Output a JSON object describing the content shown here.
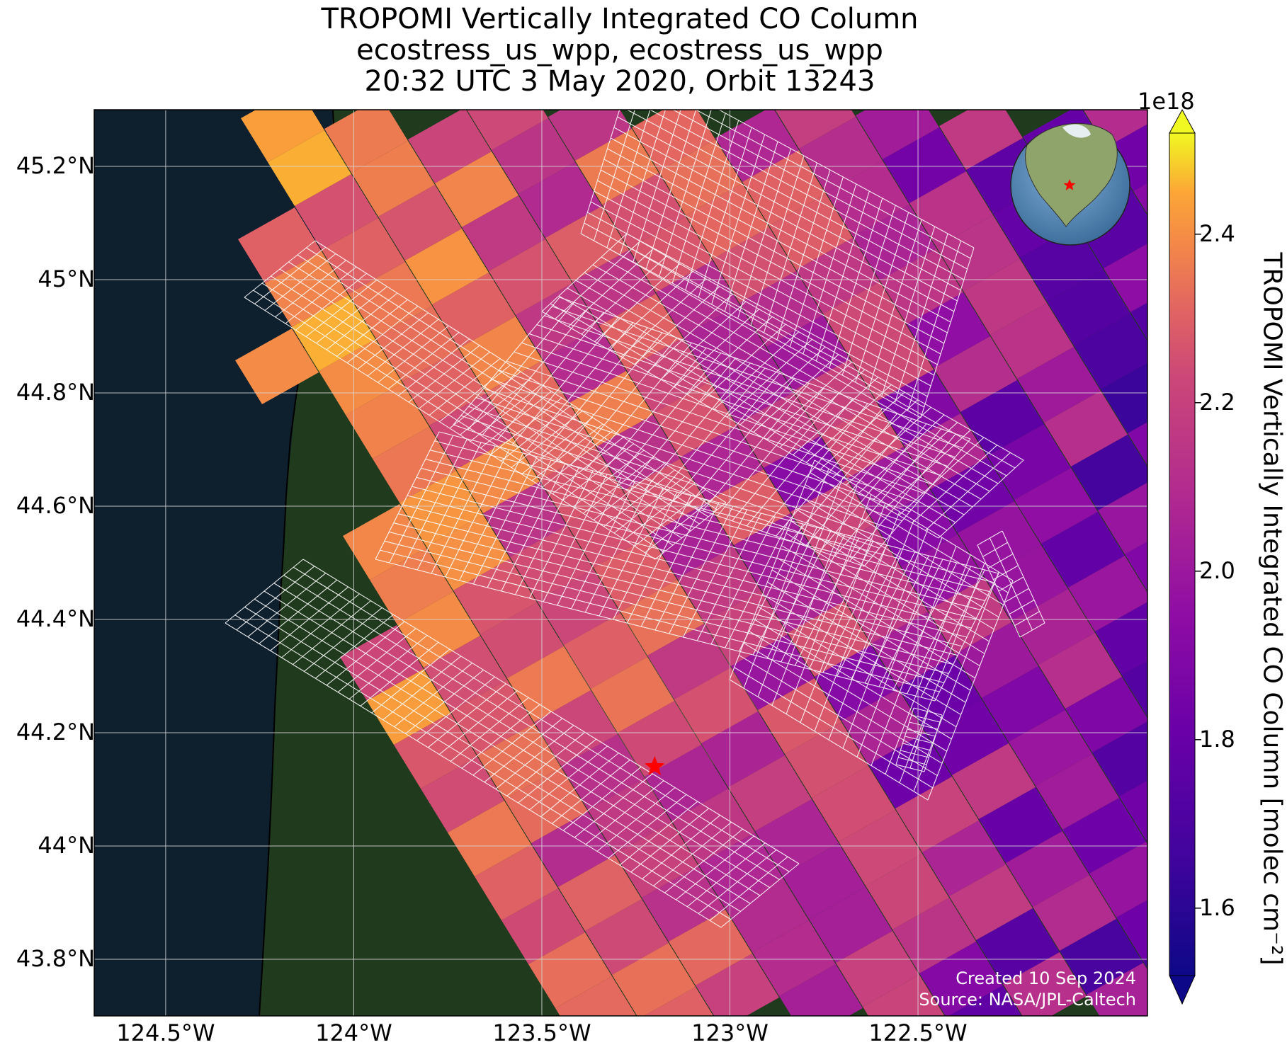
{
  "title": {
    "line1": "TROPOMI Vertically Integrated CO Column",
    "line2": "ecostress_us_wpp, ecostress_us_wpp",
    "line3": "20:32 UTC 3 May 2020, Orbit 13243"
  },
  "map": {
    "lon_range": [
      -124.69,
      -121.89
    ],
    "lat_range": [
      43.7,
      45.3
    ],
    "lon_ticks": [
      {
        "value": -124.5,
        "label": "124.5°W"
      },
      {
        "value": -124.0,
        "label": "124°W"
      },
      {
        "value": -123.5,
        "label": "123.5°W"
      },
      {
        "value": -123.0,
        "label": "123°W"
      },
      {
        "value": -122.5,
        "label": "122.5°W"
      }
    ],
    "lat_ticks": [
      {
        "value": 45.2,
        "label": "45.2°N"
      },
      {
        "value": 45.0,
        "label": "45°N"
      },
      {
        "value": 44.8,
        "label": "44.8°N"
      },
      {
        "value": 44.6,
        "label": "44.6°N"
      },
      {
        "value": 44.4,
        "label": "44.4°N"
      },
      {
        "value": 44.2,
        "label": "44.2°N"
      },
      {
        "value": 44.0,
        "label": "44°N"
      },
      {
        "value": 43.8,
        "label": "43.8°N"
      }
    ],
    "marker": {
      "lon": -123.2,
      "lat": 44.14,
      "color": "#ff0000",
      "symbol": "star"
    },
    "ocean_color": "#0e1f2e",
    "land_color": "#1f3a1c"
  },
  "colorbar": {
    "label": "TROPOMI Vertically Integrated CO Column [molec cm⁻²]",
    "exponent": "1e18",
    "range": [
      1.52,
      2.52
    ],
    "ticks": [
      {
        "value": 1.6,
        "label": "1.6"
      },
      {
        "value": 1.8,
        "label": "1.8"
      },
      {
        "value": 2.0,
        "label": "2.0"
      },
      {
        "value": 2.2,
        "label": "2.2"
      },
      {
        "value": 2.4,
        "label": "2.4"
      }
    ],
    "colormap": "plasma",
    "extend": "both"
  },
  "credits": {
    "created": "Created 10 Sep 2024",
    "source": "Source: NASA/JPL-Caltech"
  }
}
